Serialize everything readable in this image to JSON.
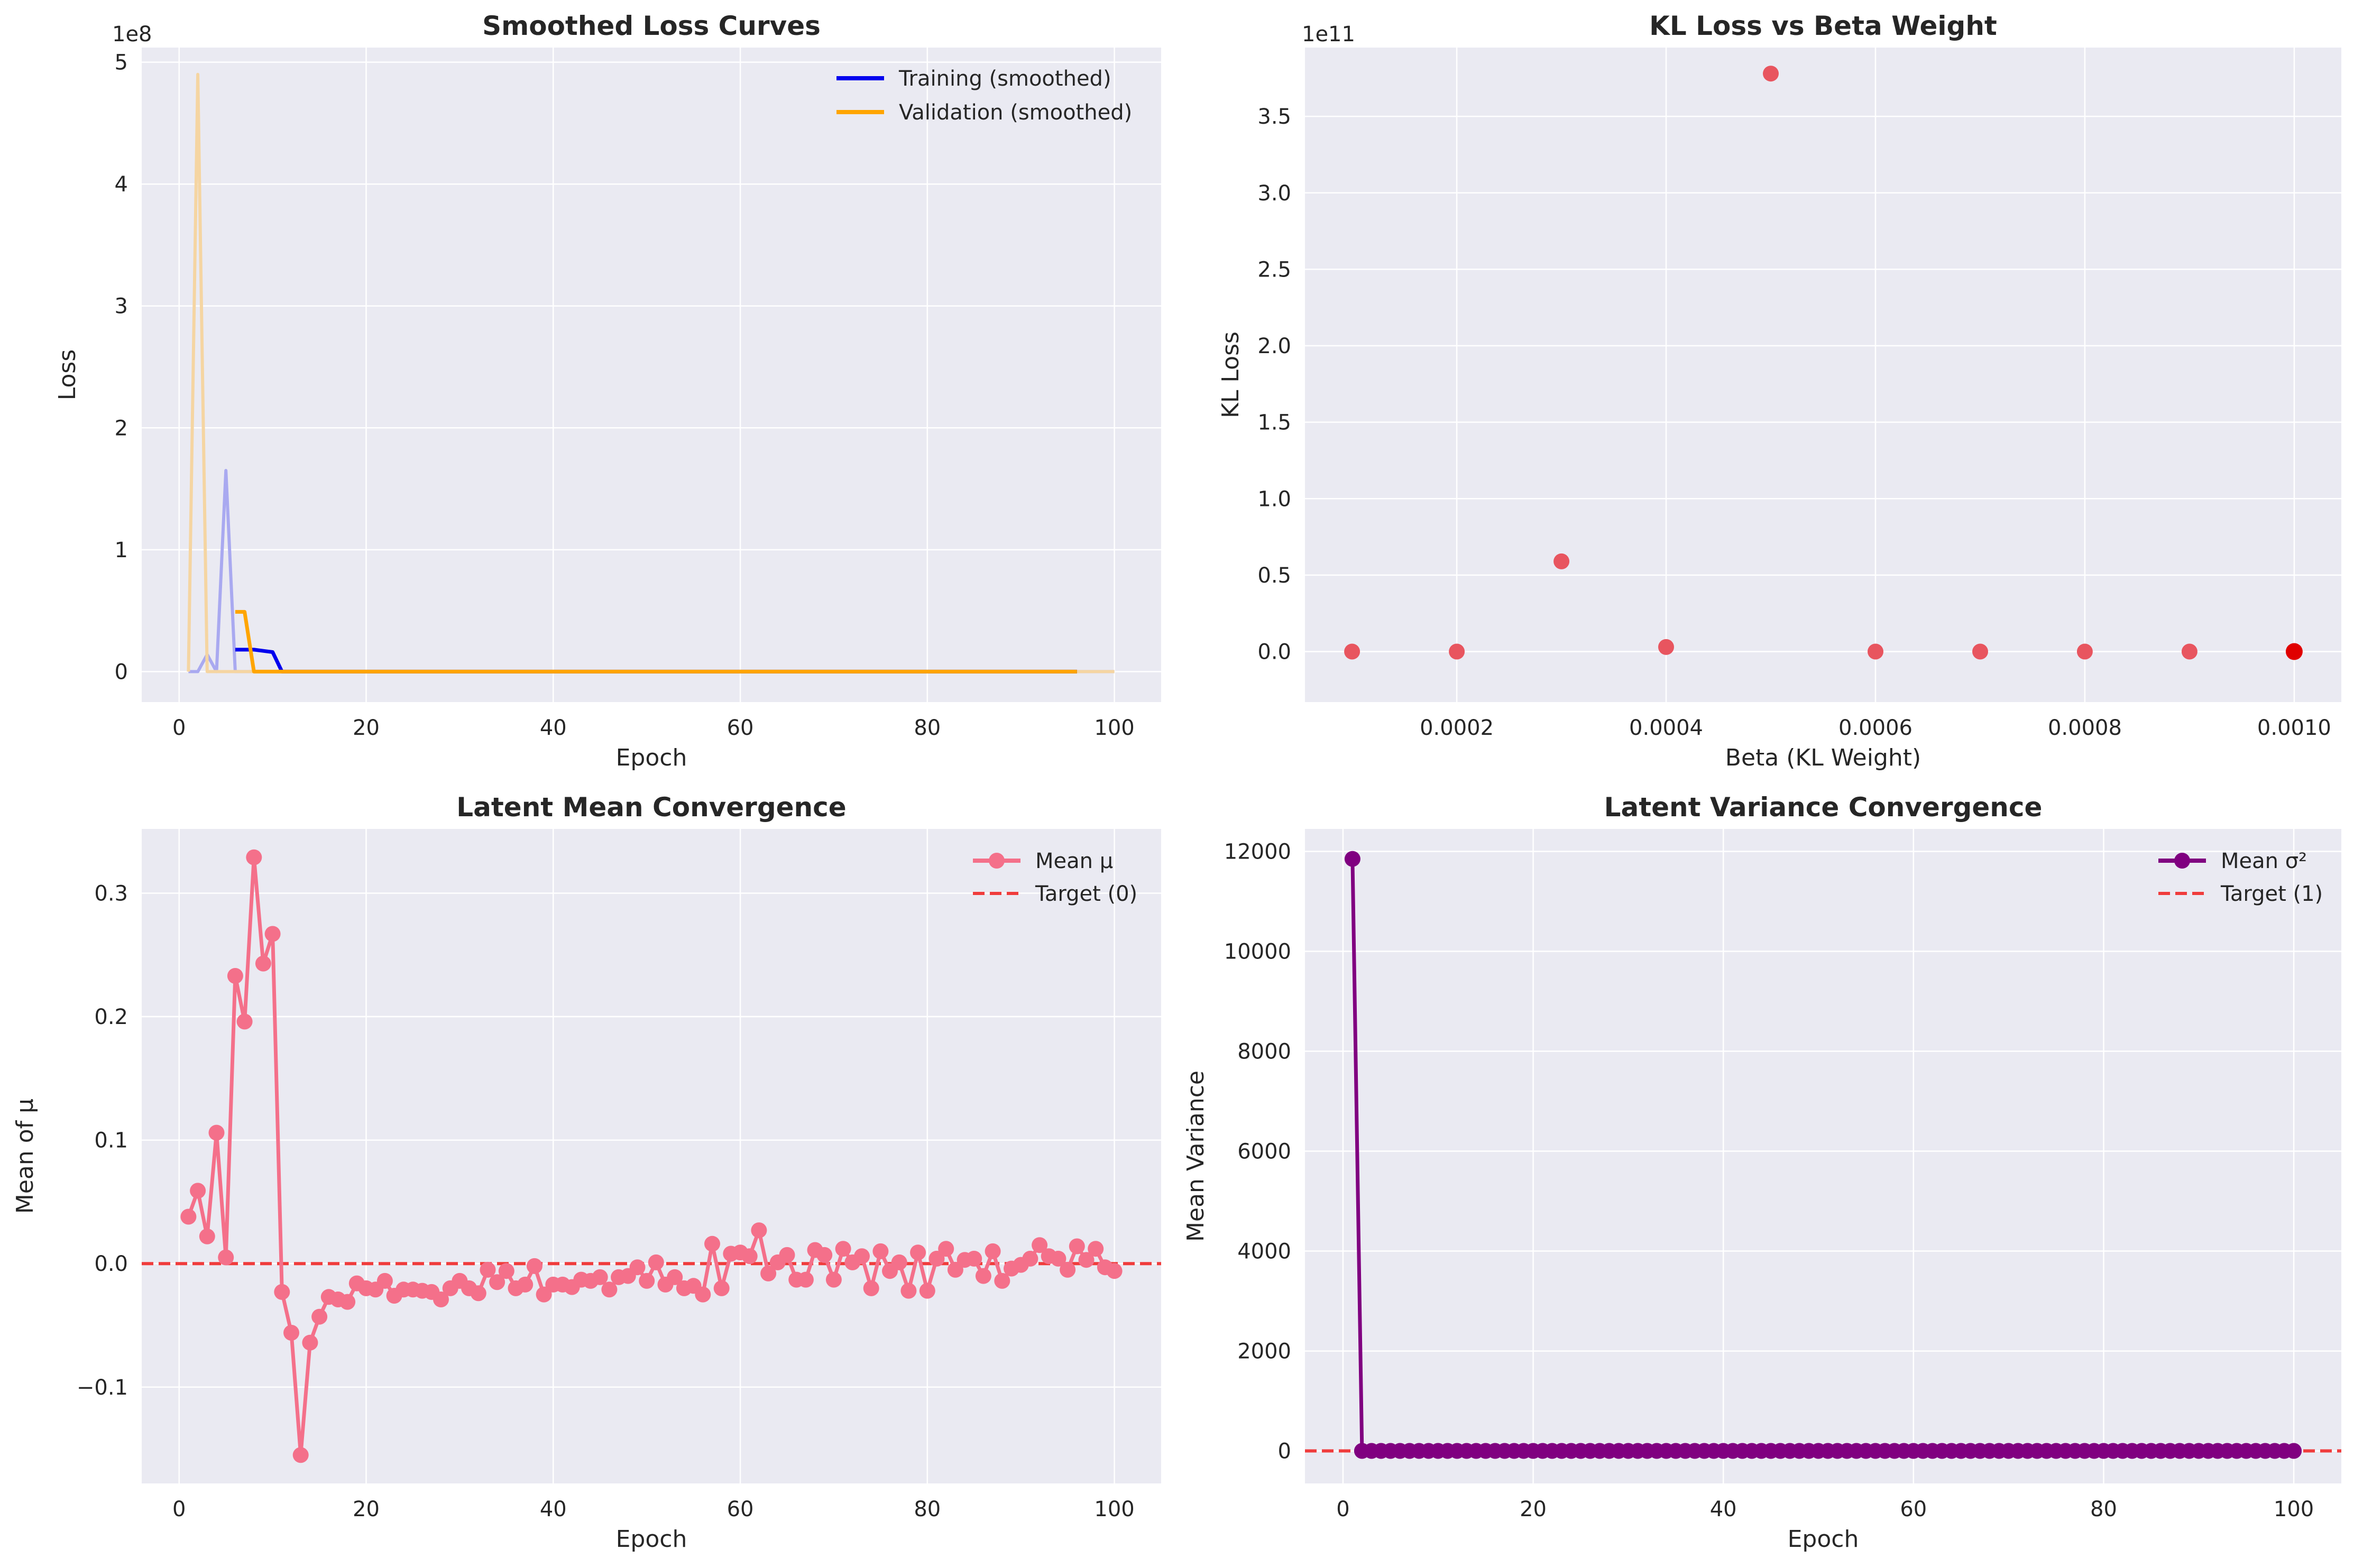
{
  "chart_data": [
    {
      "id": "loss",
      "type": "line",
      "title": "Smoothed Loss Curves",
      "xlabel": "Epoch",
      "ylabel": "Loss",
      "offset_label": "1e8",
      "xlim": [
        -4,
        105
      ],
      "ylim": [
        -0.25,
        5.12
      ],
      "xticks": [
        0,
        20,
        40,
        60,
        80,
        100
      ],
      "yticks": [
        0,
        1,
        2,
        3,
        4,
        5
      ],
      "grid": true,
      "legend": "top-right",
      "raw_series": [
        {
          "color": "#a9a9f0",
          "x": [
            1,
            2,
            3,
            4,
            5,
            6,
            7,
            8,
            9,
            10,
            11,
            12,
            20,
            40,
            60,
            80,
            100
          ],
          "y": [
            0,
            0,
            0.14,
            0,
            1.65,
            0,
            0,
            0,
            0,
            0,
            0,
            0,
            0,
            0,
            0,
            0,
            0
          ]
        },
        {
          "color": "#f5d5a2",
          "x": [
            1,
            2,
            3,
            4,
            5,
            6,
            7,
            8,
            9,
            10,
            11,
            12,
            20,
            40,
            60,
            80,
            100
          ],
          "y": [
            0,
            4.9,
            0,
            0,
            0,
            0,
            0,
            0,
            0,
            0,
            0,
            0,
            0,
            0,
            0,
            0,
            0
          ]
        }
      ],
      "series": [
        {
          "name": "Training (smoothed)",
          "color": "#0000ee",
          "x": [
            6,
            7,
            8,
            9,
            10,
            11,
            12,
            20,
            40,
            60,
            80,
            96
          ],
          "y": [
            0.18,
            0.18,
            0.18,
            0.17,
            0.16,
            0,
            0,
            0,
            0,
            0,
            0,
            0
          ]
        },
        {
          "name": "Validation (smoothed)",
          "color": "#ffa500",
          "x": [
            6,
            7,
            8,
            9,
            10,
            11,
            12,
            20,
            40,
            60,
            80,
            96
          ],
          "y": [
            0.49,
            0.49,
            0,
            0,
            0,
            0,
            0,
            0,
            0,
            0,
            0,
            0
          ]
        }
      ]
    },
    {
      "id": "kl",
      "type": "scatter",
      "title": "KL Loss vs Beta Weight",
      "xlabel": "Beta (KL Weight)",
      "ylabel": "KL Loss",
      "offset_label": "1e11",
      "xlim": [
        5.5e-05,
        0.001045
      ],
      "ylim": [
        -0.33,
        3.95
      ],
      "xticks": [
        0.0002,
        0.0004,
        0.0006,
        0.0008,
        0.001
      ],
      "xtick_labels": [
        "0.0002",
        "0.0004",
        "0.0006",
        "0.0008",
        "0.0010"
      ],
      "yticks": [
        0,
        0.5,
        1.0,
        1.5,
        2.0,
        2.5,
        3.0,
        3.5
      ],
      "ytick_labels": [
        "0.0",
        "0.5",
        "1.0",
        "1.5",
        "2.0",
        "2.5",
        "3.0",
        "3.5"
      ],
      "grid": true,
      "point_color": "#e8555f",
      "highlight_color": "#e00000",
      "x": [
        0.0001,
        0.0002,
        0.0003,
        0.0004,
        0.0005,
        0.0006,
        0.0007,
        0.0008,
        0.0009,
        0.001
      ],
      "y": [
        0,
        0,
        0.59,
        0.03,
        3.78,
        0,
        0,
        0,
        0,
        0
      ],
      "highlight_index": 9
    },
    {
      "id": "mean",
      "type": "line",
      "title": "Latent Mean Convergence",
      "xlabel": "Epoch",
      "ylabel": "Mean of μ",
      "xlim": [
        -4,
        105
      ],
      "ylim": [
        -0.178,
        0.352
      ],
      "xticks": [
        0,
        20,
        40,
        60,
        80,
        100
      ],
      "yticks": [
        -0.1,
        0,
        0.1,
        0.2,
        0.3
      ],
      "ytick_labels": [
        "−0.1",
        "0.0",
        "0.1",
        "0.2",
        "0.3"
      ],
      "grid": true,
      "legend": "top-right",
      "series": [
        {
          "name": "Mean μ",
          "color": "#f4708a",
          "x": [
            1,
            2,
            3,
            4,
            5,
            6,
            7,
            8,
            9,
            10,
            11,
            12,
            13,
            14,
            15,
            16,
            17,
            18,
            19,
            20,
            21,
            22,
            23,
            24,
            25,
            26,
            27,
            28,
            29,
            30,
            31,
            32,
            33,
            34,
            35,
            36,
            37,
            38,
            39,
            40,
            41,
            42,
            43,
            44,
            45,
            46,
            47,
            48,
            49,
            50,
            51,
            52,
            53,
            54,
            55,
            56,
            57,
            58,
            59,
            60,
            61,
            62,
            63,
            64,
            65,
            66,
            67,
            68,
            69,
            70,
            71,
            72,
            73,
            74,
            75,
            76,
            77,
            78,
            79,
            80,
            81,
            82,
            83,
            84,
            85,
            86,
            87,
            88,
            89,
            90,
            91,
            92,
            93,
            94,
            95,
            96,
            97,
            98,
            99,
            100
          ],
          "y": [
            0.038,
            0.059,
            0.022,
            0.106,
            0.005,
            0.233,
            0.196,
            0.329,
            0.243,
            0.267,
            -0.023,
            -0.056,
            -0.155,
            -0.064,
            -0.043,
            -0.027,
            -0.029,
            -0.031,
            -0.016,
            -0.02,
            -0.021,
            -0.014,
            -0.026,
            -0.021,
            -0.021,
            -0.022,
            -0.023,
            -0.029,
            -0.02,
            -0.014,
            -0.02,
            -0.024,
            -0.005,
            -0.015,
            -0.006,
            -0.02,
            -0.017,
            -0.002,
            -0.025,
            -0.017,
            -0.017,
            -0.019,
            -0.013,
            -0.014,
            -0.011,
            -0.021,
            -0.011,
            -0.01,
            -0.003,
            -0.014,
            0.001,
            -0.017,
            -0.011,
            -0.02,
            -0.018,
            -0.025,
            0.016,
            -0.02,
            0.008,
            0.009,
            0.006,
            0.027,
            -0.008,
            0.001,
            0.007,
            -0.013,
            -0.013,
            0.011,
            0.007,
            -0.013,
            0.012,
            0.001,
            0.006,
            -0.02,
            0.01,
            -0.006,
            0.001,
            -0.022,
            0.009,
            -0.022,
            0.004,
            0.012,
            -0.005,
            0.003,
            0.004,
            -0.01,
            0.01,
            -0.014,
            -0.004,
            -0.001,
            0.004,
            0.015,
            0.006,
            0.004,
            -0.005,
            0.014,
            0.003,
            0.012,
            -0.003,
            -0.006
          ]
        },
        {
          "name": "Target (0)",
          "color": "#f03c3c",
          "dashed": true,
          "y": 0
        }
      ]
    },
    {
      "id": "variance",
      "type": "line",
      "title": "Latent Variance Convergence",
      "xlabel": "Epoch",
      "ylabel": "Mean Variance",
      "xlim": [
        -4,
        105
      ],
      "ylim": [
        -650,
        12450
      ],
      "xticks": [
        0,
        20,
        40,
        60,
        80,
        100
      ],
      "yticks": [
        0,
        2000,
        4000,
        6000,
        8000,
        10000,
        12000
      ],
      "grid": true,
      "legend": "top-right",
      "series": [
        {
          "name": "Mean σ²",
          "color": "#800080",
          "x": [
            1,
            2,
            3,
            4,
            5,
            6,
            7,
            8,
            9,
            10,
            11,
            12,
            13,
            14,
            15,
            16,
            17,
            18,
            19,
            20,
            21,
            22,
            23,
            24,
            25,
            26,
            27,
            28,
            29,
            30,
            31,
            32,
            33,
            34,
            35,
            36,
            37,
            38,
            39,
            40,
            41,
            42,
            43,
            44,
            45,
            46,
            47,
            48,
            49,
            50,
            51,
            52,
            53,
            54,
            55,
            56,
            57,
            58,
            59,
            60,
            61,
            62,
            63,
            64,
            65,
            66,
            67,
            68,
            69,
            70,
            71,
            72,
            73,
            74,
            75,
            76,
            77,
            78,
            79,
            80,
            81,
            82,
            83,
            84,
            85,
            86,
            87,
            88,
            89,
            90,
            91,
            92,
            93,
            94,
            95,
            96,
            97,
            98,
            99,
            100
          ],
          "first_value": 11850,
          "rest_value": 1
        },
        {
          "name": "Target (1)",
          "color": "#f03c3c",
          "dashed": true,
          "y": 1
        }
      ]
    }
  ]
}
